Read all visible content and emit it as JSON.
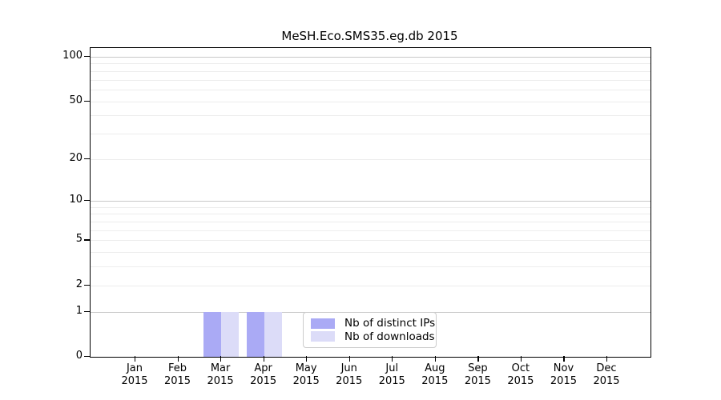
{
  "title": "MeSH.Eco.SMS35.eg.db 2015",
  "chart_data": {
    "type": "bar",
    "title": "MeSH.Eco.SMS35.eg.db 2015",
    "categories": [
      "Jan 2015",
      "Feb 2015",
      "Mar 2015",
      "Apr 2015",
      "May 2015",
      "Jun 2015",
      "Jul 2015",
      "Aug 2015",
      "Sep 2015",
      "Oct 2015",
      "Nov 2015",
      "Dec 2015"
    ],
    "series": [
      {
        "name": "Nb of distinct IPs",
        "color": "#aaaaf5",
        "values": [
          0,
          0,
          1,
          1,
          0,
          0,
          0,
          0,
          0,
          0,
          0,
          0
        ]
      },
      {
        "name": "Nb of downloads",
        "color": "#dcdcf8",
        "values": [
          0,
          0,
          1,
          1,
          0,
          0,
          0,
          0,
          0,
          0,
          0,
          0
        ]
      }
    ],
    "xlabel": "",
    "ylabel": "",
    "yscale": "log10(1+x)",
    "ylim": [
      0,
      100
    ],
    "y_tick_values": [
      100,
      50,
      20,
      10,
      5,
      2,
      1,
      0
    ],
    "y_tick_labels": [
      "100",
      "50",
      "20",
      "10",
      "5",
      "2",
      "1",
      "0"
    ],
    "y_major_gridlines": [
      1,
      10,
      100
    ],
    "y_minor_gridlines": [
      2,
      3,
      4,
      5,
      6,
      7,
      8,
      9,
      20,
      30,
      40,
      50,
      60,
      70,
      80,
      90
    ],
    "grid": true,
    "legend_position": "inside-bottom-center"
  },
  "colors": {
    "background": "#ffffff",
    "axis": "#000000",
    "grid_major": "#c9c9c9",
    "grid_minor": "#ededed",
    "bar_distinct_ips": "#aaaaf5",
    "bar_downloads": "#dcdcf8",
    "legend_border": "#cccccc"
  },
  "legend": {
    "items": [
      {
        "label": "Nb of distinct IPs",
        "swatch_color": "#aaaaf5"
      },
      {
        "label": "Nb of downloads",
        "swatch_color": "#dcdcf8"
      }
    ]
  }
}
